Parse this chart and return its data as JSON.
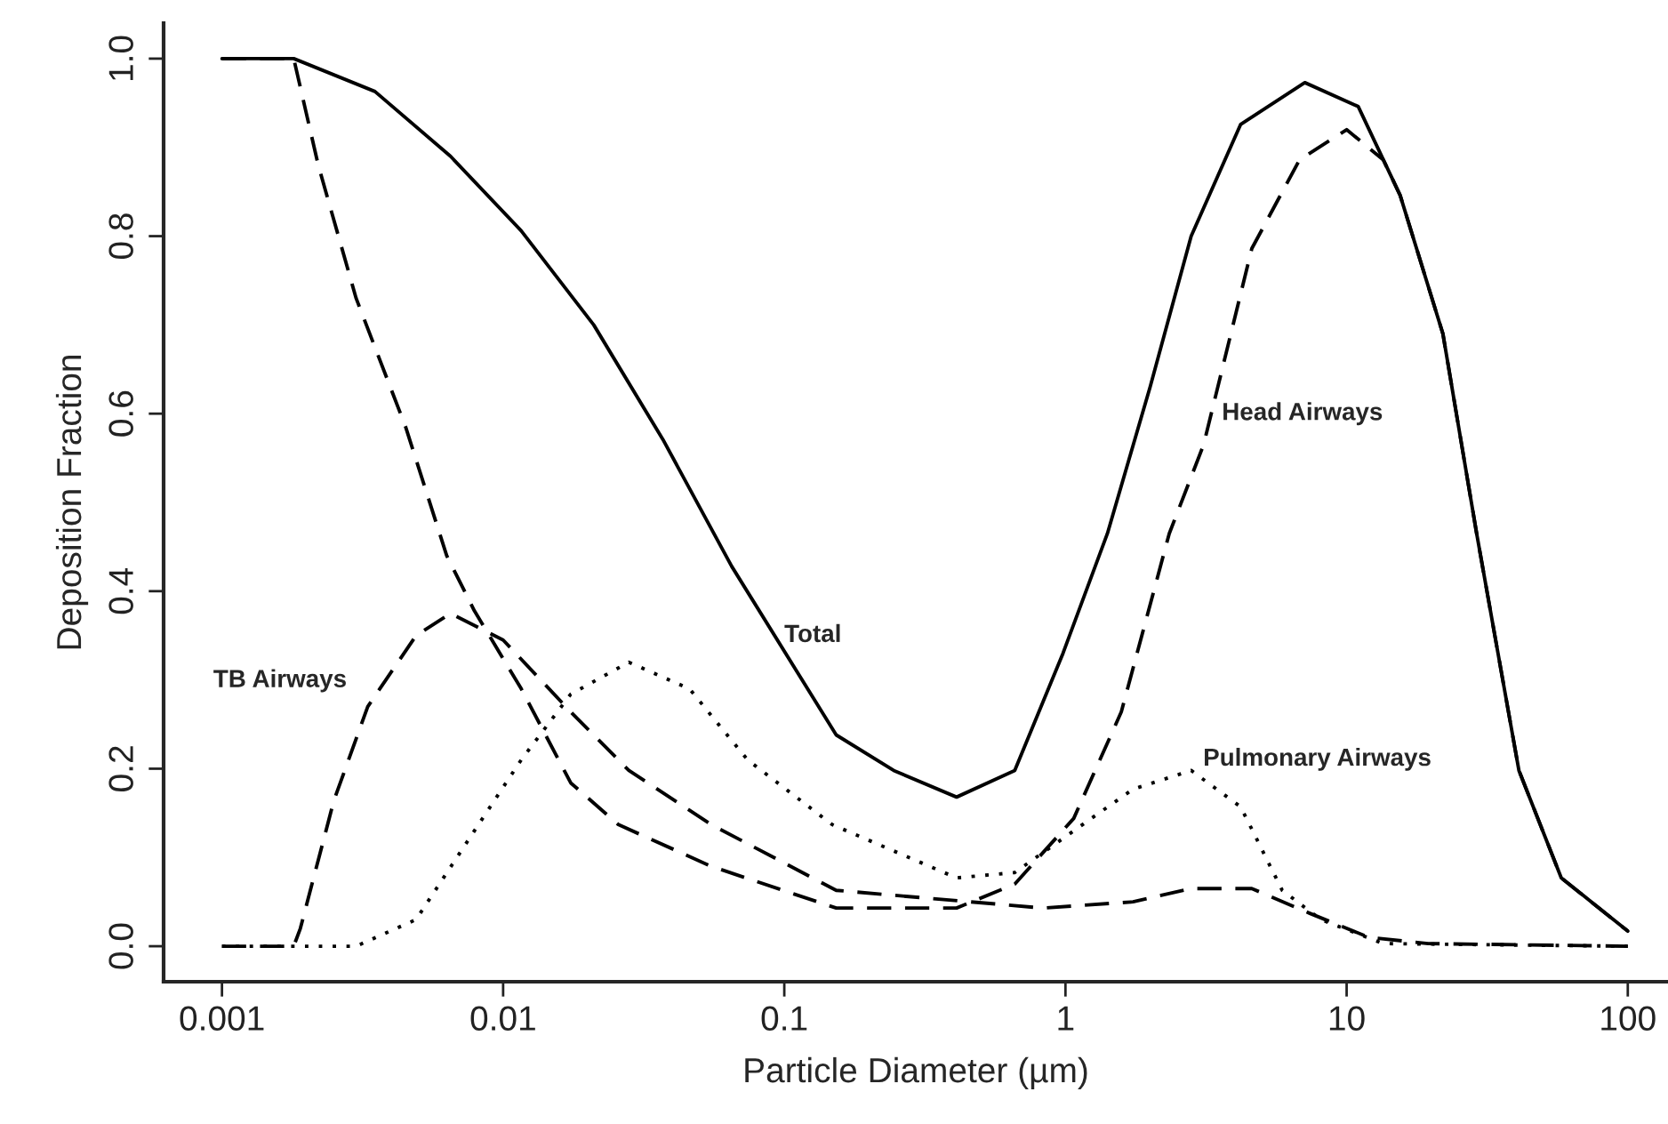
{
  "chart_data": {
    "type": "line",
    "xlabel": "Particle Diameter (µm)",
    "ylabel": "Deposition Fraction",
    "log": "x",
    "xlim": [
      0.00062,
      139
    ],
    "xticks": [
      0.001,
      0.01,
      0.1,
      1,
      10,
      100
    ],
    "ylim": [
      -0.04,
      1.04
    ],
    "yticks": [
      {
        "value": 0,
        "label": "0.0"
      },
      0.2,
      0.4,
      0.6,
      0.8,
      {
        "value": 1,
        "label": "1.0"
      }
    ],
    "grid": false,
    "legend": false,
    "marker": "none",
    "series": [
      {
        "color": "#000000",
        "line_style": "solid",
        "x": [
          0.001,
          0.0018,
          0.0035,
          0.0065,
          0.0116,
          0.021,
          0.037,
          0.065,
          0.153,
          0.245,
          0.41,
          0.66,
          0.98,
          1.41,
          2.0,
          2.8,
          4.2,
          7.1,
          11,
          15.5,
          22,
          29,
          41,
          58,
          100
        ],
        "values": [
          1.0,
          1.0,
          0.963,
          0.89,
          0.806,
          0.7,
          0.571,
          0.428,
          0.238,
          0.198,
          0.168,
          0.198,
          0.33,
          0.465,
          0.63,
          0.8,
          0.926,
          0.973,
          0.946,
          0.846,
          0.69,
          0.465,
          0.198,
          0.077,
          0.017
        ]
      },
      {
        "color": "#000000",
        "line_style": "dashed",
        "x": [
          0.001,
          0.0018,
          0.0022,
          0.003,
          0.0045,
          0.0063,
          0.0079,
          0.0116,
          0.0174,
          0.0257,
          0.055,
          0.153,
          0.41,
          0.66,
          1.07,
          1.58,
          2.34,
          3.1,
          4.6,
          6.8,
          10,
          13.5,
          15.5,
          22,
          29,
          41,
          58,
          100
        ],
        "values": [
          1.0,
          1.0,
          0.88,
          0.73,
          0.585,
          0.44,
          0.378,
          0.29,
          0.184,
          0.137,
          0.09,
          0.043,
          0.043,
          0.07,
          0.144,
          0.264,
          0.465,
          0.565,
          0.786,
          0.886,
          0.92,
          0.886,
          0.846,
          0.69,
          0.465,
          0.198,
          0.077,
          0.017
        ]
      },
      {
        "color": "#000000",
        "line_style": "dashed",
        "x": [
          0.001,
          0.0018,
          0.0019,
          0.0025,
          0.0033,
          0.0049,
          0.0065,
          0.01,
          0.0174,
          0.028,
          0.055,
          0.153,
          0.83,
          1.74,
          2.8,
          4.6,
          7.4,
          12,
          19.5,
          100
        ],
        "values": [
          0.0,
          0.0,
          0.02,
          0.164,
          0.27,
          0.35,
          0.375,
          0.345,
          0.264,
          0.198,
          0.137,
          0.063,
          0.043,
          0.05,
          0.065,
          0.065,
          0.037,
          0.01,
          0.003,
          0.0
        ]
      },
      {
        "color": "#000000",
        "line_style": "dotted",
        "x": [
          0.001,
          0.003,
          0.0049,
          0.0079,
          0.0116,
          0.0174,
          0.028,
          0.046,
          0.074,
          0.148,
          0.41,
          0.66,
          1.07,
          1.74,
          2.8,
          4.2,
          5.9,
          8.1,
          13.5,
          100
        ],
        "values": [
          0.0,
          0.0,
          0.03,
          0.13,
          0.21,
          0.284,
          0.32,
          0.29,
          0.21,
          0.137,
          0.077,
          0.083,
          0.13,
          0.177,
          0.198,
          0.157,
          0.063,
          0.03,
          0.003,
          0.0
        ]
      }
    ],
    "annotations": [
      {
        "text": "Total",
        "x": 0.1,
        "y": 0.35
      },
      "TB Airways",
      {
        "text": "Head Airways",
        "x": 3.6,
        "y": 0.6
      },
      "Pulmonary Airways"
    ]
  }
}
